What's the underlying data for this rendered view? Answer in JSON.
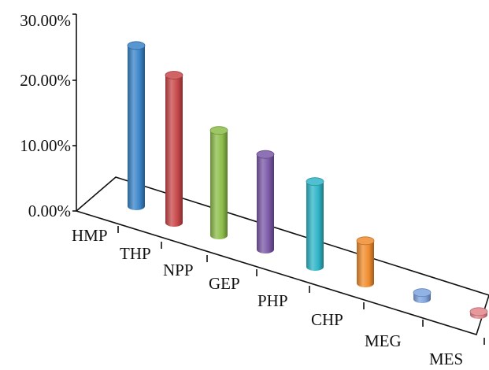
{
  "chart_data": {
    "type": "bar",
    "title": "",
    "xlabel": "",
    "ylabel": "",
    "categories": [
      "HMP",
      "THP",
      "NPP",
      "GEP",
      "PHP",
      "CHP",
      "MEG",
      "MES"
    ],
    "values": [
      24.5,
      22.5,
      16.0,
      14.5,
      13.0,
      6.5,
      1.0,
      0.5
    ],
    "ylim": [
      0,
      30
    ],
    "yticks": [
      "0.00%",
      "10.00%",
      "20.00%",
      "30.00%"
    ],
    "colors": [
      "#3b84c9",
      "#c8484a",
      "#8cbd49",
      "#7b59a8",
      "#2fb5c8",
      "#f08c2e",
      "#7ea4e0",
      "#e3868c"
    ],
    "grid": false,
    "legend": "none",
    "style": "3d-cylinder"
  }
}
